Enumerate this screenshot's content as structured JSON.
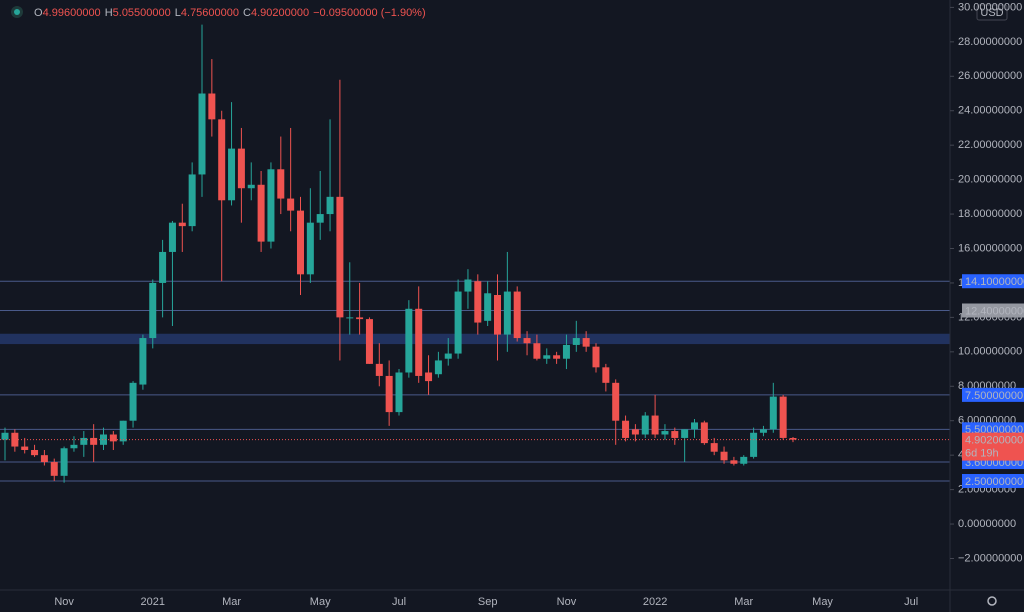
{
  "chart_data": {
    "type": "candlestick",
    "legend": {
      "items": [
        {
          "key": "O",
          "value": "4.99600000"
        },
        {
          "key": "H",
          "value": "5.05500000"
        },
        {
          "key": "L",
          "value": "4.75600000"
        },
        {
          "key": "C",
          "value": "4.90200000"
        }
      ],
      "change": "−0.09500000 (−1.90%)"
    },
    "currency": "USD",
    "up_color": "#26a69a",
    "down_color": "#ef5350",
    "categories": [
      null,
      null,
      null,
      null,
      null,
      null,
      "Nov",
      null,
      null,
      null,
      null,
      null,
      null,
      null,
      null,
      "2021",
      null,
      null,
      null,
      null,
      null,
      null,
      null,
      "Mar",
      null,
      null,
      null,
      null,
      null,
      null,
      null,
      null,
      "May",
      null,
      null,
      null,
      null,
      null,
      null,
      null,
      "Jul",
      null,
      null,
      null,
      null,
      null,
      null,
      null,
      null,
      "Sep",
      null,
      null,
      null,
      null,
      null,
      null,
      null,
      "Nov",
      null,
      null,
      null,
      null,
      null,
      null,
      null,
      null,
      "2022",
      null,
      null,
      null,
      null,
      null,
      null,
      null,
      null,
      "Mar",
      null,
      null,
      null,
      null,
      null,
      null,
      null,
      "May",
      null,
      null,
      null,
      null,
      null,
      null,
      null,
      null,
      "Jul",
      null,
      null,
      null
    ],
    "open": [
      4.9,
      5.3,
      4.5,
      4.3,
      4.0,
      3.6,
      2.8,
      4.4,
      4.6,
      5.0,
      4.6,
      5.2,
      4.8,
      6.0,
      8.1,
      10.8,
      14.0,
      15.8,
      17.5,
      17.3,
      20.3,
      25.0,
      23.5,
      18.8,
      21.8,
      19.5,
      19.7,
      16.4,
      20.6,
      18.9,
      18.2,
      14.5,
      17.5,
      18.0,
      19.0,
      12.0,
      12.0,
      11.9,
      9.3,
      8.6,
      6.5,
      8.8,
      12.5,
      8.8,
      8.7,
      9.6,
      9.9,
      13.5,
      14.1,
      11.8,
      13.3,
      11.0,
      13.5,
      10.8,
      10.5,
      9.6,
      9.8,
      9.6,
      10.4,
      10.8,
      10.3,
      9.1,
      8.2,
      6.0,
      5.5,
      5.2,
      6.3,
      5.2,
      5.4,
      5.0,
      5.5,
      5.9,
      4.7,
      4.2,
      3.7,
      3.5,
      3.9,
      5.3,
      5.5,
      7.4,
      4.996,
      null,
      null,
      null,
      null,
      null,
      null,
      null,
      null,
      null,
      null,
      null,
      null,
      null,
      null,
      null
    ],
    "high": [
      5.6,
      5.5,
      5.0,
      4.6,
      4.3,
      3.8,
      4.5,
      5.1,
      5.4,
      5.8,
      5.6,
      5.4,
      6.0,
      8.3,
      11.0,
      14.2,
      16.5,
      17.6,
      18.6,
      21.0,
      29.0,
      27.0,
      24.0,
      24.5,
      23.0,
      21.0,
      20.5,
      21.0,
      22.5,
      23.0,
      19.0,
      19.5,
      20.5,
      23.5,
      25.8,
      15.2,
      14.0,
      12.0,
      10.5,
      9.5,
      9.0,
      13.0,
      13.8,
      9.8,
      10.0,
      10.8,
      14.2,
      14.8,
      14.5,
      14.1,
      14.5,
      15.8,
      13.8,
      11.2,
      11.0,
      10.2,
      10.0,
      11.0,
      11.8,
      11.2,
      10.5,
      9.3,
      8.4,
      6.3,
      5.8,
      6.5,
      7.5,
      5.8,
      5.6,
      5.5,
      6.1,
      6.0,
      5.0,
      4.5,
      3.9,
      4.0,
      5.6,
      5.7,
      8.2,
      7.5,
      5.055,
      null,
      null,
      null,
      null,
      null,
      null,
      null,
      null,
      null,
      null,
      null,
      null,
      null,
      null,
      null
    ],
    "low": [
      3.7,
      4.2,
      4.1,
      3.9,
      3.4,
      2.5,
      2.4,
      4.2,
      3.9,
      3.6,
      4.3,
      4.3,
      4.6,
      5.6,
      7.8,
      10.2,
      12.0,
      11.5,
      15.8,
      17.0,
      19.0,
      22.5,
      14.1,
      18.5,
      17.5,
      18.8,
      15.8,
      16.0,
      18.0,
      17.0,
      13.3,
      14.0,
      16.5,
      17.0,
      9.5,
      11.0,
      11.0,
      9.3,
      8.0,
      5.7,
      6.3,
      8.5,
      8.2,
      7.5,
      8.5,
      9.2,
      9.6,
      12.5,
      11.0,
      11.5,
      9.5,
      10.0,
      10.6,
      9.8,
      9.5,
      9.3,
      9.3,
      9.0,
      10.0,
      10.0,
      8.8,
      7.7,
      4.6,
      4.8,
      4.8,
      5.0,
      5.0,
      4.9,
      4.6,
      3.6,
      5.0,
      4.6,
      4.0,
      3.5,
      3.4,
      3.4,
      3.8,
      5.1,
      5.3,
      4.9,
      4.756,
      null,
      null,
      null,
      null,
      null,
      null,
      null,
      null,
      null,
      null,
      null,
      null,
      null,
      null,
      null
    ],
    "close": [
      5.3,
      4.5,
      4.3,
      4.0,
      3.6,
      2.8,
      4.4,
      4.6,
      5.0,
      4.6,
      5.2,
      4.8,
      6.0,
      8.2,
      10.8,
      14.0,
      15.8,
      17.5,
      17.3,
      20.3,
      25.0,
      23.5,
      18.8,
      21.8,
      19.5,
      19.7,
      16.4,
      20.6,
      18.9,
      18.2,
      14.5,
      17.5,
      18.0,
      19.0,
      12.0,
      12.0,
      11.9,
      9.3,
      8.6,
      6.5,
      8.8,
      12.5,
      8.6,
      8.3,
      9.5,
      9.9,
      13.5,
      14.2,
      11.7,
      13.4,
      11.0,
      13.5,
      10.8,
      10.5,
      9.6,
      9.8,
      9.6,
      10.4,
      10.8,
      10.3,
      9.1,
      8.2,
      6.0,
      5.0,
      5.2,
      6.3,
      5.2,
      5.4,
      5.0,
      5.5,
      5.9,
      4.7,
      4.2,
      3.7,
      3.5,
      3.9,
      5.3,
      5.5,
      7.4,
      5.0,
      4.902,
      null,
      null,
      null,
      null,
      null,
      null,
      null,
      null,
      null,
      null,
      null,
      null,
      null,
      null,
      null
    ],
    "ylim": [
      -3.83,
      30.43
    ],
    "yticks": [
      {
        "value": -2,
        "label": "−2.00000000"
      },
      {
        "value": 0,
        "label": "0.00000000"
      },
      {
        "value": 2,
        "label": "2.00000000"
      },
      {
        "value": 4,
        "label": "4.00000000"
      },
      {
        "value": 6,
        "label": "6.00000000"
      },
      {
        "value": 8,
        "label": "8.00000000"
      },
      {
        "value": 10,
        "label": "10.00000000"
      },
      {
        "value": 12,
        "label": "12.00000000"
      },
      {
        "value": 14,
        "label": "14.00000000"
      },
      {
        "value": 16,
        "label": "16.00000000"
      },
      {
        "value": 18,
        "label": "18.00000000"
      },
      {
        "value": 20,
        "label": "20.00000000"
      },
      {
        "value": 22,
        "label": "22.00000000"
      },
      {
        "value": 24,
        "label": "24.00000000"
      },
      {
        "value": 26,
        "label": "26.00000000"
      },
      {
        "value": 28,
        "label": "28.00000000"
      },
      {
        "value": 30,
        "label": "30.00000000"
      }
    ],
    "levels": [
      {
        "value": 14.1,
        "label": "14.10000000",
        "color": "#2962ff"
      },
      {
        "value": 12.4,
        "label": "12.40000000",
        "color": "#9598a1"
      },
      {
        "value": 7.5,
        "label": "7.50000000",
        "color": "#2962ff"
      },
      {
        "value": 5.5,
        "label": "5.50000000",
        "color": "#2962ff"
      },
      {
        "value": 3.6,
        "label": "3.60000000",
        "color": "#2962ff"
      },
      {
        "value": 2.5,
        "label": "2.50000000",
        "color": "#2962ff"
      }
    ],
    "zone": [
      10.45,
      11.05
    ],
    "last_price": {
      "value": 4.902,
      "label": "4.90200000"
    },
    "countdown": "6d 19h"
  }
}
